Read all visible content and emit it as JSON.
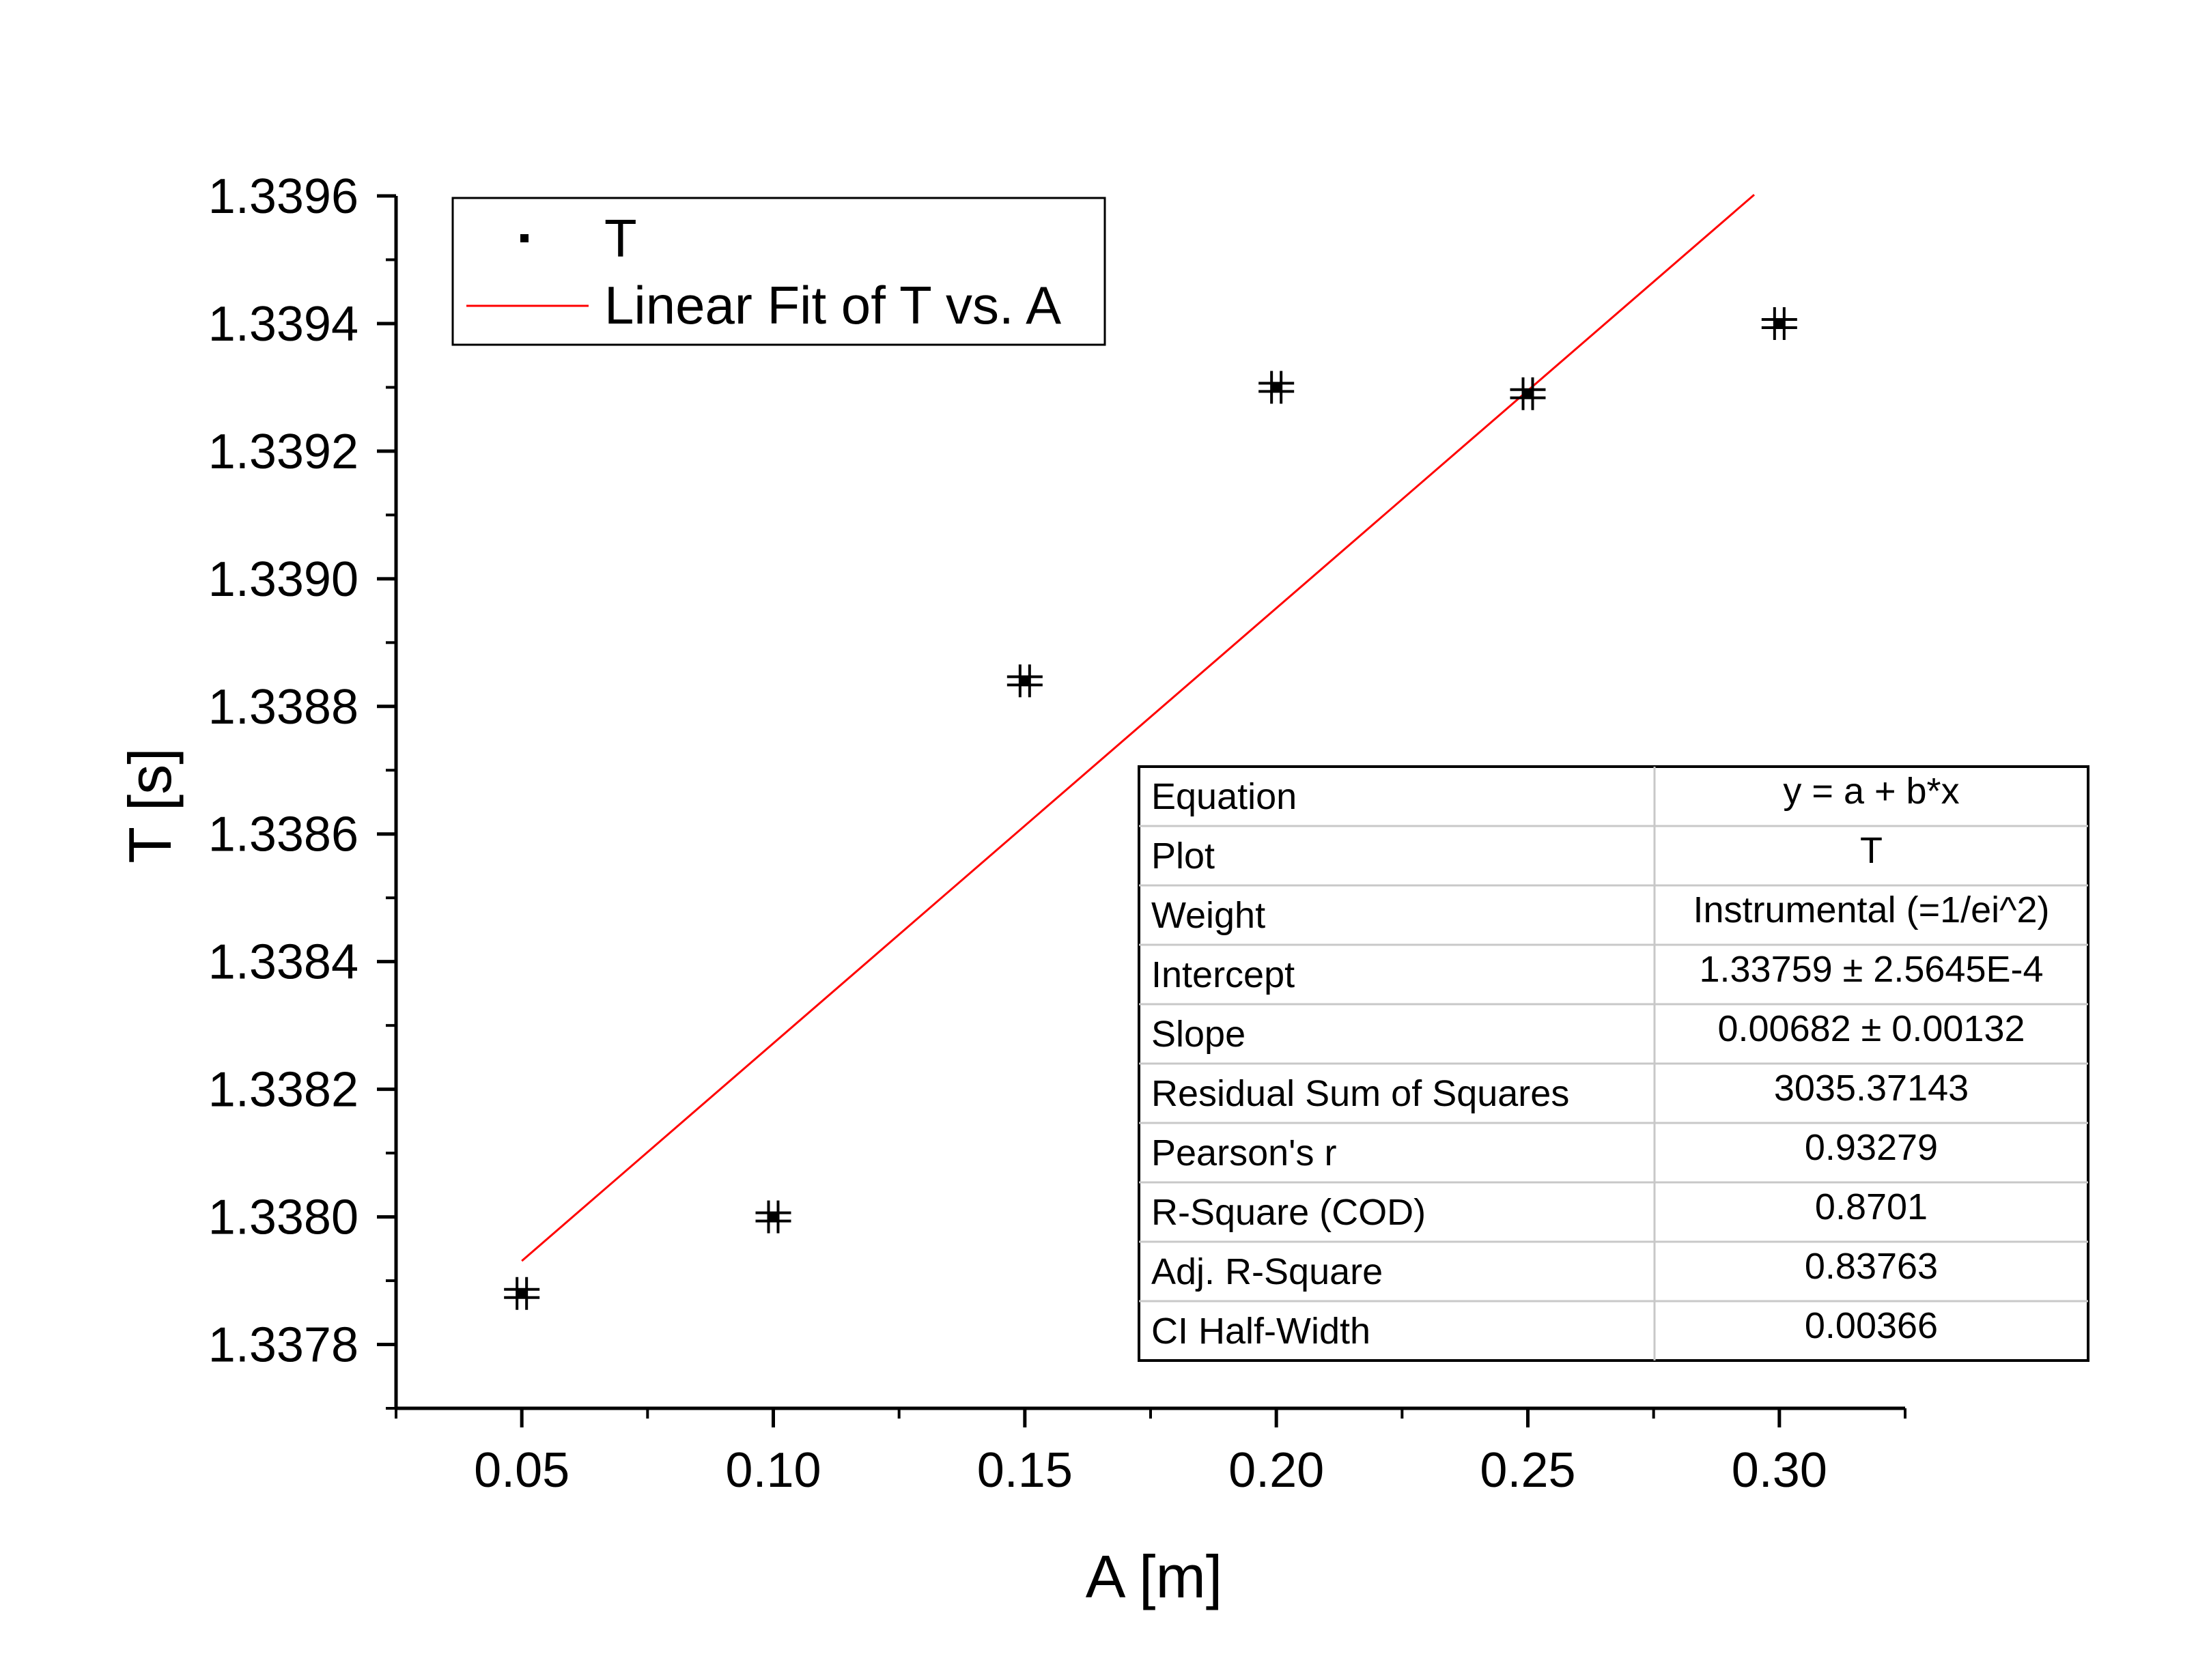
{
  "chart_data": {
    "type": "scatter",
    "xlabel": "A [m]",
    "ylabel": "T [s]",
    "xlim": [
      0.025,
      0.325
    ],
    "ylim": [
      1.3377,
      1.3396
    ],
    "x_ticks": [
      "0.05",
      "0.10",
      "0.15",
      "0.20",
      "0.25",
      "0.30"
    ],
    "y_ticks": [
      "1.3378",
      "1.3380",
      "1.3382",
      "1.3384",
      "1.3386",
      "1.3388",
      "1.3390",
      "1.3392",
      "1.3394",
      "1.3396"
    ],
    "grid": false,
    "legend_position": "top-left",
    "series": [
      {
        "name": "T",
        "kind": "scatter-with-error-bars",
        "color": "#000000",
        "x": [
          0.05,
          0.1,
          0.15,
          0.2,
          0.25,
          0.3
        ],
        "y": [
          1.33788,
          1.338,
          1.33884,
          1.3393,
          1.33929,
          1.3394
        ]
      },
      {
        "name": "Linear Fit of T vs. A",
        "kind": "fit-line",
        "color": "#ff0000",
        "intercept": 1.33759,
        "slope": 0.00682,
        "x_range": [
          0.05,
          0.295
        ]
      }
    ],
    "fit_table": [
      {
        "label": "Equation",
        "value": "y = a + b*x"
      },
      {
        "label": "Plot",
        "value": "T"
      },
      {
        "label": "Weight",
        "value": "Instrumental (=1/ei^2)"
      },
      {
        "label": "Intercept",
        "value": "1.33759 ± 2.5645E-4"
      },
      {
        "label": "Slope",
        "value": "0.00682 ± 0.00132"
      },
      {
        "label": "Residual Sum of Squares",
        "value": "3035.37143"
      },
      {
        "label": "Pearson's r",
        "value": "0.93279"
      },
      {
        "label": "R-Square (COD)",
        "value": "0.8701"
      },
      {
        "label": "Adj. R-Square",
        "value": "0.83763"
      },
      {
        "label": "CI Half-Width",
        "value": "0.00366"
      }
    ]
  }
}
